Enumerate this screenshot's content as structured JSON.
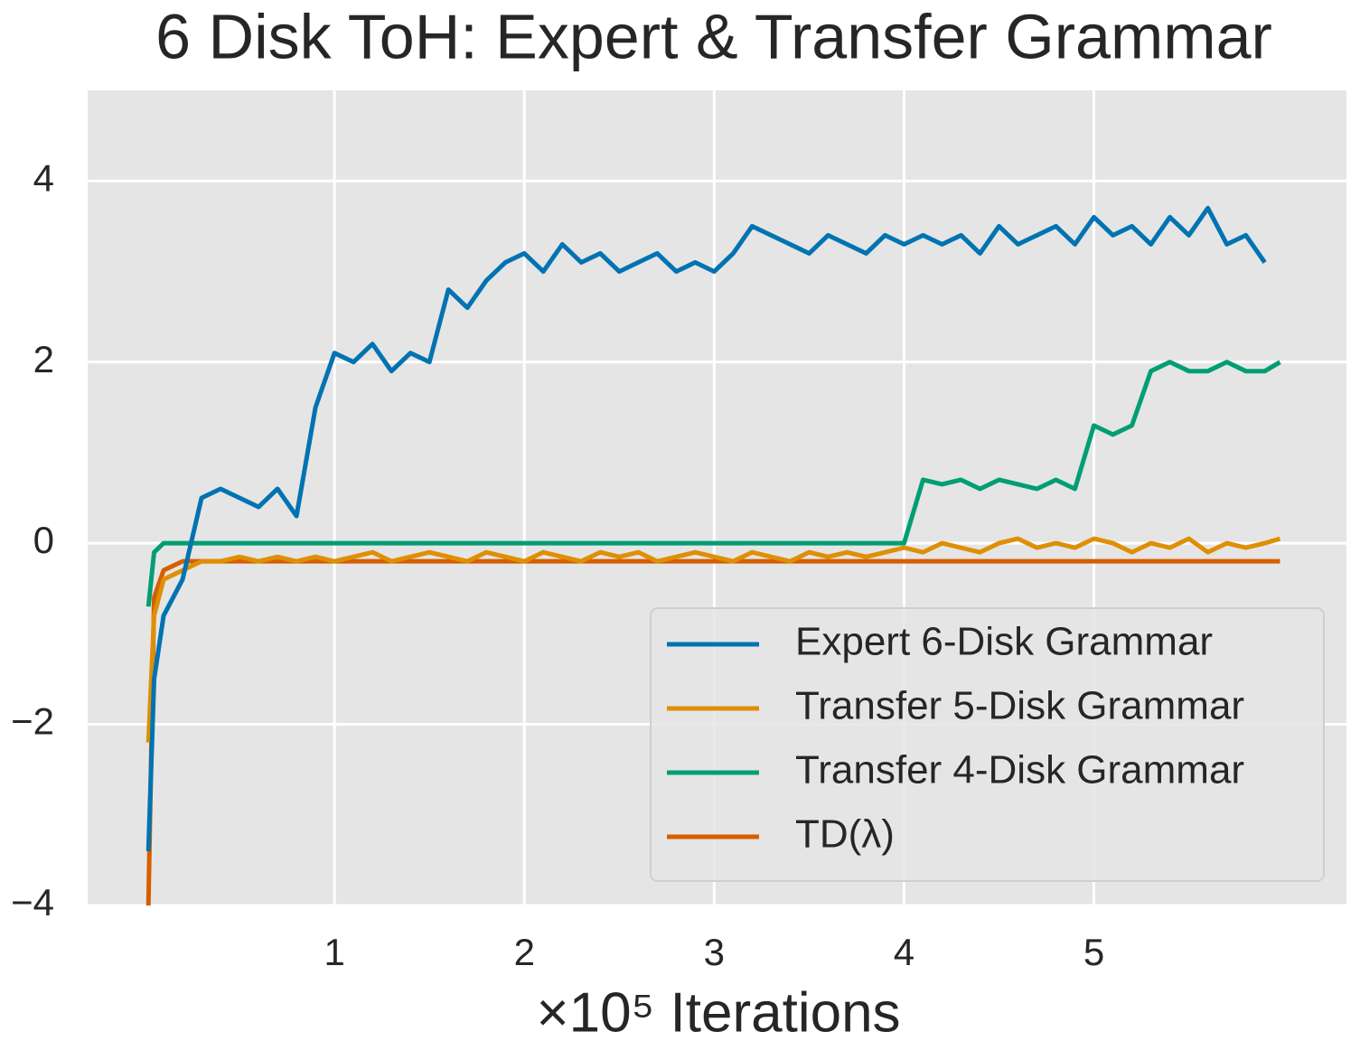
{
  "chart_data": {
    "type": "line",
    "title": "6 Disk ToH: Expert & Transfer Grammar",
    "xlabel": "×10⁵ Iterations",
    "x": [
      0.02,
      0.05,
      0.1,
      0.2,
      0.3,
      0.4,
      0.5,
      0.6,
      0.7,
      0.8,
      0.9,
      1.0,
      1.1,
      1.2,
      1.3,
      1.4,
      1.5,
      1.6,
      1.7,
      1.8,
      1.9,
      2.0,
      2.1,
      2.2,
      2.3,
      2.4,
      2.5,
      2.6,
      2.7,
      2.8,
      2.9,
      3.0,
      3.1,
      3.2,
      3.3,
      3.4,
      3.5,
      3.6,
      3.7,
      3.8,
      3.9,
      4.0,
      4.1,
      4.2,
      4.3,
      4.4,
      4.5,
      4.6,
      4.7,
      4.8,
      4.9,
      5.0,
      5.1,
      5.2,
      5.3,
      5.4,
      5.5,
      5.6,
      5.7,
      5.8,
      5.9,
      5.98
    ],
    "series": [
      {
        "name": "Expert 6-Disk Grammar",
        "color": "#0173b2",
        "values": [
          -3.4,
          -1.5,
          -0.8,
          -0.4,
          0.5,
          0.6,
          0.5,
          0.4,
          0.6,
          0.3,
          1.5,
          2.1,
          2.0,
          2.2,
          1.9,
          2.1,
          2.0,
          2.8,
          2.6,
          2.9,
          3.1,
          3.2,
          3.0,
          3.3,
          3.1,
          3.2,
          3.0,
          3.1,
          3.2,
          3.0,
          3.1,
          3.0,
          3.2,
          3.5,
          3.4,
          3.3,
          3.2,
          3.4,
          3.3,
          3.2,
          3.4,
          3.3,
          3.4,
          3.3,
          3.4,
          3.2,
          3.5,
          3.3,
          3.4,
          3.5,
          3.3,
          3.6,
          3.4,
          3.5,
          3.3,
          3.6,
          3.4,
          3.7,
          3.3,
          3.4,
          3.1,
          null
        ]
      },
      {
        "name": "Transfer 5-Disk Grammar",
        "color": "#de8f05",
        "values": [
          -2.2,
          -0.8,
          -0.4,
          -0.3,
          -0.2,
          -0.2,
          -0.15,
          -0.2,
          -0.15,
          -0.2,
          -0.15,
          -0.2,
          -0.15,
          -0.1,
          -0.2,
          -0.15,
          -0.1,
          -0.15,
          -0.2,
          -0.1,
          -0.15,
          -0.2,
          -0.1,
          -0.15,
          -0.2,
          -0.1,
          -0.15,
          -0.1,
          -0.2,
          -0.15,
          -0.1,
          -0.15,
          -0.2,
          -0.1,
          -0.15,
          -0.2,
          -0.1,
          -0.15,
          -0.1,
          -0.15,
          -0.1,
          -0.05,
          -0.1,
          0,
          -0.05,
          -0.1,
          0,
          0.05,
          -0.05,
          0,
          -0.05,
          0.05,
          0,
          -0.1,
          0,
          -0.05,
          0.05,
          -0.1,
          0,
          -0.05,
          0,
          0.05
        ]
      },
      {
        "name": "Transfer 4-Disk Grammar",
        "color": "#029e73",
        "values": [
          -0.7,
          -0.1,
          0,
          0,
          0,
          0,
          0,
          0,
          0,
          0,
          0,
          0,
          0,
          0,
          0,
          0,
          0,
          0,
          0,
          0,
          0,
          0,
          0,
          0,
          0,
          0,
          0,
          0,
          0,
          0,
          0,
          0,
          0,
          0,
          0,
          0,
          0,
          0,
          0,
          0,
          0,
          0,
          0.7,
          0.65,
          0.7,
          0.6,
          0.7,
          0.65,
          0.6,
          0.7,
          0.6,
          1.3,
          1.2,
          1.3,
          1.9,
          2.0,
          1.9,
          1.9,
          2.0,
          1.9,
          1.9,
          2.0
        ]
      },
      {
        "name": "TD(λ)",
        "color": "#d55e00",
        "values": [
          -4.0,
          -0.6,
          -0.3,
          -0.2,
          -0.2,
          -0.2,
          -0.2,
          -0.2,
          -0.2,
          -0.2,
          -0.2,
          -0.2,
          -0.2,
          -0.2,
          -0.2,
          -0.2,
          -0.2,
          -0.2,
          -0.2,
          -0.2,
          -0.2,
          -0.2,
          -0.2,
          -0.2,
          -0.2,
          -0.2,
          -0.2,
          -0.2,
          -0.2,
          -0.2,
          -0.2,
          -0.2,
          -0.2,
          -0.2,
          -0.2,
          -0.2,
          -0.2,
          -0.2,
          -0.2,
          -0.2,
          -0.2,
          -0.2,
          -0.2,
          -0.2,
          -0.2,
          -0.2,
          -0.2,
          -0.2,
          -0.2,
          -0.2,
          -0.2,
          -0.2,
          -0.2,
          -0.2,
          -0.2,
          -0.2,
          -0.2,
          -0.2,
          -0.2,
          -0.2,
          -0.2,
          -0.2
        ]
      }
    ],
    "xlim": [
      -0.3,
      6.33
    ],
    "xticks": [
      1,
      2,
      3,
      4,
      5
    ],
    "ylim": [
      -4,
      5
    ],
    "yticks": [
      {
        "value": -4,
        "label": "−4"
      },
      {
        "value": -2,
        "label": "−2"
      },
      0,
      2,
      4
    ],
    "grid": true,
    "legend": "lower right"
  }
}
